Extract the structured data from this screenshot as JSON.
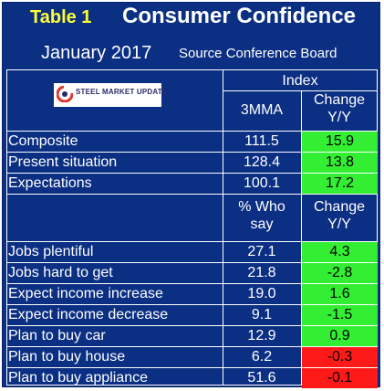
{
  "title": {
    "table_label": "Table 1",
    "main": "Consumer Confidence"
  },
  "subtitle": {
    "date": "January 2017",
    "source": "Source Conference Board"
  },
  "logo": {
    "text": "STEEL MARKET UPDATE"
  },
  "index_header": "Index",
  "col_headers_1": {
    "a": "3MMA",
    "b_line1": "Change",
    "b_line2": "Y/Y"
  },
  "section1": [
    {
      "label": "Composite",
      "value": "111.5",
      "change": "15.9",
      "status": "green"
    },
    {
      "label": "Present situation",
      "value": "128.4",
      "change": "13.8",
      "status": "green"
    },
    {
      "label": "Expectations",
      "value": "100.1",
      "change": "17.2",
      "status": "green"
    }
  ],
  "col_headers_2": {
    "a_line1": "% Who",
    "a_line2": "say",
    "b_line1": "Change",
    "b_line2": "Y/Y"
  },
  "section2": [
    {
      "label": "Jobs plentiful",
      "value": "27.1",
      "change": "4.3",
      "status": "green"
    },
    {
      "label": "Jobs hard to get",
      "value": "21.8",
      "change": "-2.8",
      "status": "green"
    },
    {
      "label": "Expect income increase",
      "value": "19.0",
      "change": "1.6",
      "status": "green"
    },
    {
      "label": "Expect income decrease",
      "value": "9.1",
      "change": "-1.5",
      "status": "green"
    },
    {
      "label": "Plan to buy car",
      "value": "12.9",
      "change": "0.9",
      "status": "green"
    },
    {
      "label": "Plan to buy house",
      "value": "6.2",
      "change": "-0.3",
      "status": "red"
    },
    {
      "label": "Plan to buy appliance",
      "value": "51.6",
      "change": "-0.1",
      "status": "red"
    }
  ],
  "colors": {
    "background": "#0b2f83",
    "positive": "#33ee33",
    "negative": "#ff1a1a",
    "title_accent": "#ffff33"
  }
}
